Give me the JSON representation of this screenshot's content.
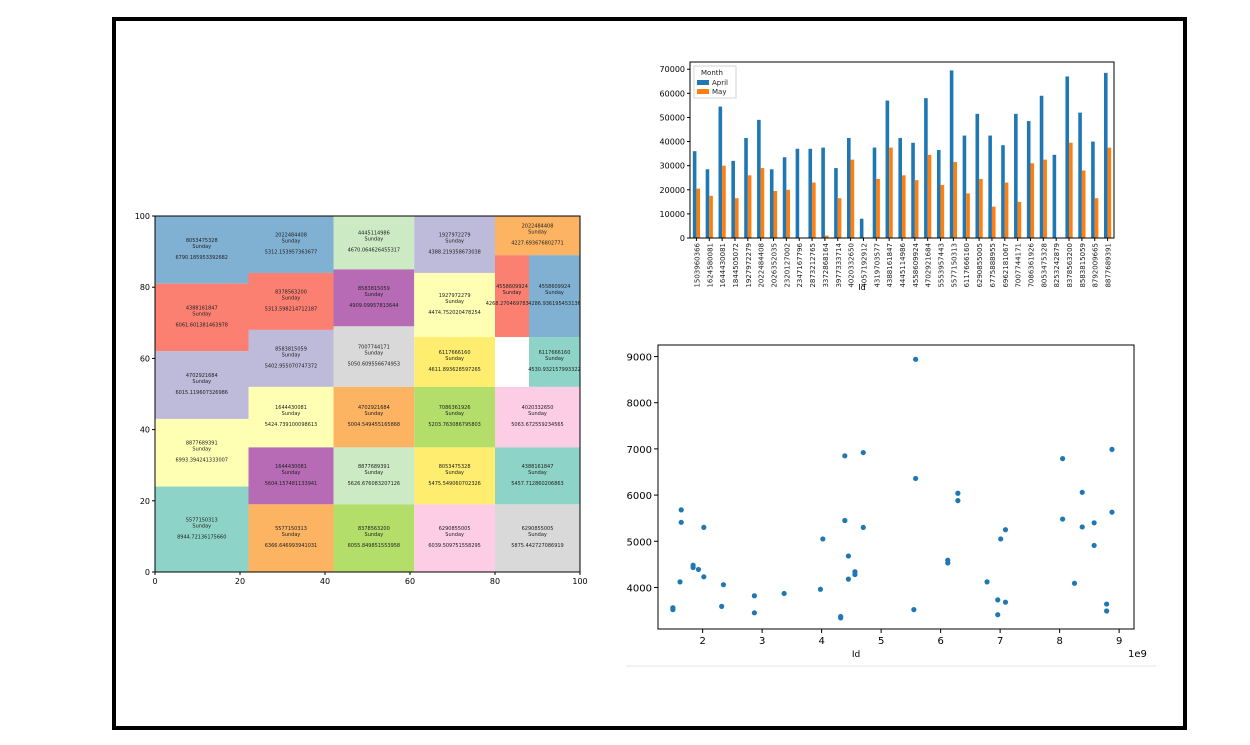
{
  "chart_data": [
    {
      "type": "treemap",
      "xlim": [
        0,
        100
      ],
      "ylim": [
        0,
        100
      ],
      "x_ticks": [
        "0",
        "20",
        "40",
        "60",
        "80",
        "100"
      ],
      "y_ticks": [
        "0",
        "20",
        "40",
        "60",
        "80",
        "100"
      ],
      "cells": [
        {
          "id": "8053475328",
          "day": "Sunday",
          "value": "6790.185953392682",
          "color": "#80b1d3"
        },
        {
          "id": "4388161847",
          "day": "Sunday",
          "value": "6061.601381463978",
          "color": "#fb8072"
        },
        {
          "id": "4702921684",
          "day": "Sunday",
          "value": "6015.119607326986",
          "color": "#bebada"
        },
        {
          "id": "8877689391",
          "day": "Sunday",
          "value": "6993.394241333007",
          "color": "#ffffb3"
        },
        {
          "id": "5577150313",
          "day": "Sunday",
          "value": "8944.72136175660",
          "color": "#8dd3c7"
        },
        {
          "id": "2022484408",
          "day": "Sunday",
          "value": "5312.153957363677",
          "color": "#80b1d3"
        },
        {
          "id": "8378563200",
          "day": "Sunday",
          "value": "5313.598214712187",
          "color": "#fb8072"
        },
        {
          "id": "8583815059",
          "day": "Sunday",
          "value": "5402.955070747372",
          "color": "#bebada"
        },
        {
          "id": "1644430081",
          "day": "Sunday",
          "value": "5424.739100098613",
          "color": "#ffffb3"
        },
        {
          "id": "1644430081",
          "day": "Sunday",
          "value": "5604.157481133941",
          "color": "#b76bb5"
        },
        {
          "id": "5577150313",
          "day": "Sunday",
          "value": "6366.646993941031",
          "color": "#fdb462"
        },
        {
          "id": "4445114986",
          "day": "Sunday",
          "value": "4670.064626455317",
          "color": "#ccebc5"
        },
        {
          "id": "8583815059",
          "day": "Sunday",
          "value": "4909.09957813644",
          "color": "#b76bb5"
        },
        {
          "id": "7007744171",
          "day": "Sunday",
          "value": "5050.609556674953",
          "color": "#d9d9d9"
        },
        {
          "id": "4702921684",
          "day": "Sunday",
          "value": "5004.549455165868",
          "color": "#fdb462"
        },
        {
          "id": "8877689391",
          "day": "Sunday",
          "value": "5626.676083207126",
          "color": "#ccebc5"
        },
        {
          "id": "8378563200",
          "day": "Sunday",
          "value": "6055.849851553958",
          "color": "#b3de69"
        },
        {
          "id": "1927972279",
          "day": "Sunday",
          "value": "4388.219358673038",
          "color": "#bebada"
        },
        {
          "id": "1927972279",
          "day": "Sunday",
          "value": "4474.752020478254",
          "color": "#ffffb3"
        },
        {
          "id": "6117666160",
          "day": "Sunday",
          "value": "4611.893628597265",
          "color": "#ffed6f"
        },
        {
          "id": "7086361926",
          "day": "Sunday",
          "value": "5203.763086795803",
          "color": "#b3de69"
        },
        {
          "id": "8053475328",
          "day": "Sunday",
          "value": "5475.549060702326",
          "color": "#ffed6f"
        },
        {
          "id": "6290855005",
          "day": "Sunday",
          "value": "6039.509751558295",
          "color": "#fccde5"
        },
        {
          "id": "2022484408",
          "day": "Sunday",
          "value": "4227.693676802771",
          "color": "#fdb462"
        },
        {
          "id": "4558609924",
          "day": "Sunday",
          "value": "4268.270469783254",
          "color": "#fb8072"
        },
        {
          "id": "4558609924",
          "day": "Sunday",
          "value": "4286.936195453136",
          "color": "#80b1d3"
        },
        {
          "id": "6117666160",
          "day": "Sunday",
          "value": "4530.932157993322",
          "color": "#8dd3c7"
        },
        {
          "id": "4020332650",
          "day": "Sunday",
          "value": "5063.672559234565",
          "color": "#fccde5"
        },
        {
          "id": "4388161847",
          "day": "Sunday",
          "value": "5457.712860206863",
          "color": "#8dd3c7"
        },
        {
          "id": "6290855005",
          "day": "Sunday",
          "value": "5875.442727086919",
          "color": "#d9d9d9"
        }
      ]
    },
    {
      "type": "bar",
      "xlabel": "Id",
      "legend_title": "Month",
      "legend_position": "top-left",
      "ylim": [
        0,
        73000
      ],
      "y_ticks": [
        "0",
        "10000",
        "20000",
        "30000",
        "40000",
        "50000",
        "60000",
        "70000"
      ],
      "categories": [
        "1503960366",
        "1624580081",
        "1644430081",
        "1844505072",
        "1927972279",
        "2022484408",
        "2026352035",
        "2320127002",
        "2347167796",
        "2873212765",
        "3372868164",
        "3977333714",
        "4020332650",
        "4057192912",
        "4319703577",
        "4388161847",
        "4445114986",
        "4558609924",
        "4702921684",
        "5553957443",
        "5577150313",
        "6117666160",
        "6290855005",
        "6775888955",
        "6962181067",
        "7007744171",
        "7086361926",
        "8053475328",
        "8253242879",
        "8378563200",
        "8583815059",
        "8792009665",
        "8877689391"
      ],
      "series": [
        {
          "name": "April",
          "color": "#1f77b4",
          "values": [
            36000,
            28500,
            54500,
            32000,
            41500,
            49000,
            28500,
            33500,
            37000,
            37000,
            37500,
            29000,
            41500,
            8000,
            37500,
            57000,
            41500,
            39500,
            58000,
            36500,
            69500,
            42500,
            51500,
            42500,
            38500,
            51500,
            48500,
            59000,
            34500,
            67000,
            52000,
            40000,
            68500
          ]
        },
        {
          "name": "May",
          "color": "#ff7f0e",
          "values": [
            20500,
            17500,
            30000,
            16500,
            26000,
            29000,
            19500,
            20000,
            0,
            23000,
            1000,
            16500,
            32500,
            0,
            24500,
            37500,
            26000,
            24000,
            34500,
            22000,
            31500,
            18500,
            24500,
            13000,
            23000,
            15000,
            31000,
            32500,
            0,
            39500,
            28000,
            16500,
            37500
          ]
        }
      ]
    },
    {
      "type": "scatter",
      "xlabel": "Id",
      "x_offset_label": "1e9",
      "xlim": [
        1.25,
        9.25
      ],
      "ylim": [
        3100,
        9250
      ],
      "x_ticks": [
        "2",
        "3",
        "4",
        "5",
        "6",
        "7",
        "8",
        "9"
      ],
      "y_ticks": [
        "4000",
        "5000",
        "6000",
        "7000",
        "8000",
        "9000"
      ],
      "color": "#1f77b4",
      "points": [
        [
          1.5,
          3520
        ],
        [
          1.5,
          3560
        ],
        [
          1.62,
          4120
        ],
        [
          1.64,
          5680
        ],
        [
          1.64,
          5410
        ],
        [
          1.84,
          4480
        ],
        [
          1.84,
          4430
        ],
        [
          1.93,
          4390
        ],
        [
          2.02,
          4230
        ],
        [
          2.02,
          5300
        ],
        [
          2.32,
          3590
        ],
        [
          2.35,
          4060
        ],
        [
          2.87,
          3820
        ],
        [
          2.87,
          3450
        ],
        [
          3.37,
          3870
        ],
        [
          3.98,
          3960
        ],
        [
          4.02,
          5050
        ],
        [
          4.32,
          3370
        ],
        [
          4.32,
          3340
        ],
        [
          4.39,
          6850
        ],
        [
          4.39,
          5450
        ],
        [
          4.45,
          4680
        ],
        [
          4.45,
          4180
        ],
        [
          4.56,
          4340
        ],
        [
          4.56,
          4280
        ],
        [
          4.7,
          6920
        ],
        [
          4.7,
          5300
        ],
        [
          5.55,
          3520
        ],
        [
          5.58,
          8940
        ],
        [
          5.58,
          6360
        ],
        [
          6.12,
          4590
        ],
        [
          6.12,
          4530
        ],
        [
          6.29,
          6040
        ],
        [
          6.29,
          5880
        ],
        [
          6.78,
          4120
        ],
        [
          6.96,
          3730
        ],
        [
          6.96,
          3410
        ],
        [
          7.01,
          5050
        ],
        [
          7.09,
          5250
        ],
        [
          7.09,
          3680
        ],
        [
          8.05,
          6790
        ],
        [
          8.05,
          5480
        ],
        [
          8.25,
          4090
        ],
        [
          8.38,
          6060
        ],
        [
          8.38,
          5310
        ],
        [
          8.58,
          5400
        ],
        [
          8.58,
          4910
        ],
        [
          8.79,
          3490
        ],
        [
          8.79,
          3640
        ],
        [
          8.88,
          6990
        ],
        [
          8.88,
          5630
        ]
      ]
    }
  ]
}
